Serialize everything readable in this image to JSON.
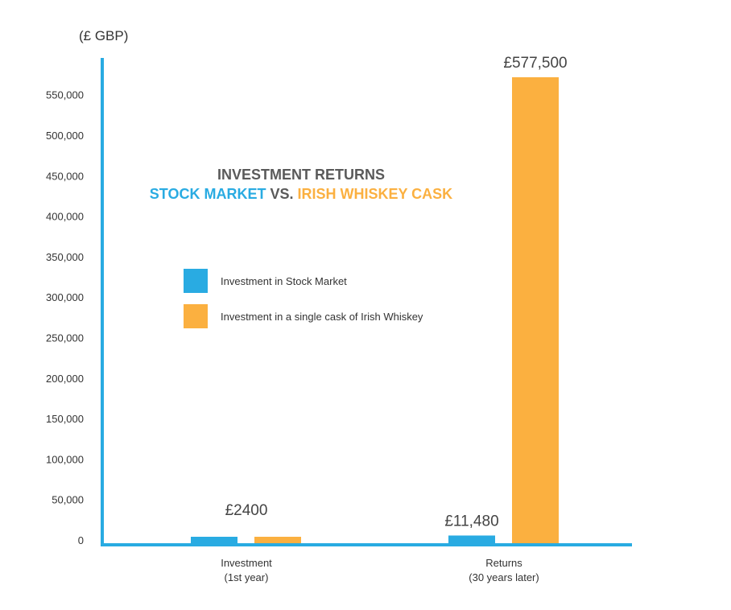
{
  "chart_data": {
    "type": "bar",
    "title": "INVESTMENT RETURNS",
    "subtitle": {
      "part1": "STOCK MARKET",
      "part2": " VS. ",
      "part3": "IRISH WHISKEY CASK"
    },
    "unit_label": "(£ GBP)",
    "xlabel": "",
    "ylabel": "",
    "ylim": [
      0,
      577500
    ],
    "yticks": [
      0,
      50000,
      100000,
      150000,
      200000,
      250000,
      300000,
      350000,
      400000,
      450000,
      500000,
      550000
    ],
    "ytick_labels": [
      "0",
      "50,000",
      "100,000",
      "150,000",
      "200,000",
      "250,000",
      "300,000",
      "350,000",
      "400,000",
      "450,000",
      "500,000",
      "550,000"
    ],
    "categories": [
      {
        "line1": "Investment",
        "line2": "(1st year)"
      },
      {
        "line1": "Returns",
        "line2": "(30 years later)"
      }
    ],
    "series": [
      {
        "name": "Investment in Stock Market",
        "color": "#29abe2",
        "values": [
          2400,
          11480
        ]
      },
      {
        "name": "Investment in a single cask of Irish Whiskey",
        "color": "#fbb040",
        "values": [
          2400,
          577500
        ]
      }
    ],
    "data_labels": [
      {
        "text": "£2400",
        "category": 0
      },
      {
        "text": "£11,480",
        "category": 1,
        "series": 0
      },
      {
        "text": "£577,500",
        "category": 1,
        "series": 1
      }
    ],
    "legend_position": "center-left",
    "grid": false,
    "colors": {
      "axis": "#29abe2",
      "title": "#5a5a5a"
    }
  }
}
